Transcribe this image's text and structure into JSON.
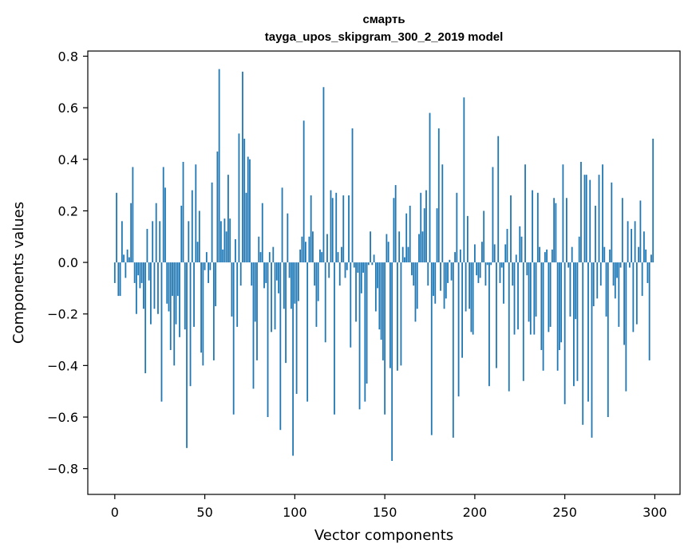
{
  "chart_data": {
    "type": "bar",
    "title_line1": "смарть",
    "title_line2": "tayga_upos_skipgram_300_2_2019 model",
    "xlabel": "Vector components",
    "ylabel": "Components values",
    "xlim": [
      -15,
      314
    ],
    "ylim": [
      -0.9,
      0.82
    ],
    "xticks": [
      0,
      50,
      100,
      150,
      200,
      250,
      300
    ],
    "yticks": [
      0.8,
      0.6,
      0.4,
      0.2,
      0.0,
      -0.2,
      -0.4,
      -0.6,
      -0.8
    ],
    "ytick_labels": [
      "0.8",
      "0.6",
      "0.4",
      "0.2",
      "0.0",
      "−0.2",
      "−0.4",
      "−0.6",
      "−0.8"
    ],
    "bar_color": "#1f77b4",
    "values": [
      -0.08,
      0.27,
      -0.13,
      -0.13,
      0.16,
      0.03,
      -0.06,
      0.05,
      0.02,
      0.23,
      0.37,
      -0.08,
      -0.2,
      -0.05,
      -0.1,
      -0.08,
      -0.18,
      -0.43,
      0.13,
      -0.07,
      -0.24,
      0.16,
      -0.18,
      0.23,
      -0.2,
      0.16,
      -0.54,
      0.37,
      0.29,
      -0.16,
      -0.19,
      -0.34,
      -0.13,
      -0.4,
      -0.24,
      -0.13,
      -0.29,
      0.22,
      0.39,
      -0.26,
      -0.72,
      0.16,
      -0.48,
      0.28,
      -0.25,
      0.38,
      0.08,
      0.2,
      -0.35,
      -0.4,
      -0.03,
      0.04,
      -0.08,
      -0.03,
      0.31,
      -0.38,
      -0.17,
      0.43,
      0.75,
      0.16,
      0.05,
      0.17,
      0.12,
      0.34,
      0.17,
      -0.21,
      -0.59,
      0.09,
      -0.25,
      0.5,
      -0.09,
      0.74,
      0.48,
      0.27,
      0.41,
      0.4,
      -0.09,
      -0.49,
      -0.23,
      -0.38,
      0.1,
      0.04,
      0.23,
      -0.1,
      -0.08,
      -0.6,
      0.04,
      -0.27,
      0.06,
      -0.26,
      -0.07,
      -0.12,
      -0.65,
      0.29,
      -0.18,
      -0.39,
      0.19,
      -0.06,
      -0.18,
      -0.75,
      -0.16,
      -0.51,
      -0.15,
      0.05,
      0.1,
      0.55,
      0.08,
      -0.54,
      0.1,
      0.26,
      0.12,
      -0.09,
      -0.25,
      -0.15,
      0.05,
      0.04,
      0.68,
      -0.31,
      0.11,
      -0.06,
      0.28,
      0.25,
      -0.59,
      0.27,
      0.04,
      -0.09,
      0.06,
      0.26,
      -0.06,
      -0.03,
      0.26,
      -0.33,
      0.52,
      -0.02,
      -0.23,
      -0.04,
      -0.57,
      -0.12,
      -0.04,
      -0.54,
      -0.47,
      -0.01,
      0.12,
      -0.01,
      0.03,
      -0.19,
      -0.1,
      -0.26,
      -0.3,
      -0.38,
      -0.59,
      0.11,
      0.08,
      -0.41,
      -0.77,
      0.25,
      0.3,
      -0.42,
      0.12,
      -0.4,
      0.06,
      0.02,
      0.19,
      0.06,
      0.22,
      -0.05,
      -0.09,
      -0.23,
      -0.18,
      0.11,
      0.27,
      0.12,
      0.21,
      0.28,
      -0.09,
      0.58,
      -0.67,
      -0.13,
      -0.16,
      0.21,
      0.52,
      -0.11,
      0.38,
      -0.18,
      -0.14,
      -0.08,
      0.01,
      -0.07,
      -0.68,
      0.04,
      0.27,
      -0.52,
      0.05,
      -0.37,
      0.64,
      -0.19,
      0.18,
      -0.18,
      -0.27,
      -0.28,
      0.07,
      -0.05,
      -0.08,
      -0.06,
      0.08,
      0.2,
      -0.09,
      -0.01,
      -0.48,
      -0.01,
      0.37,
      0.07,
      -0.41,
      0.49,
      -0.08,
      -0.02,
      -0.16,
      0.07,
      0.13,
      -0.5,
      0.26,
      -0.09,
      -0.28,
      0.03,
      -0.26,
      0.14,
      0.1,
      -0.46,
      0.38,
      -0.05,
      -0.23,
      -0.28,
      0.28,
      -0.28,
      -0.21,
      0.27,
      0.06,
      -0.34,
      -0.42,
      0.04,
      0.05,
      -0.27,
      -0.25,
      0.05,
      0.25,
      0.23,
      -0.42,
      -0.34,
      -0.31,
      0.38,
      -0.55,
      0.25,
      -0.02,
      -0.21,
      0.06,
      -0.48,
      -0.22,
      -0.46,
      0.1,
      0.39,
      -0.63,
      0.34,
      0.34,
      -0.54,
      0.32,
      -0.68,
      -0.17,
      0.22,
      -0.14,
      0.34,
      -0.09,
      0.38,
      0.06,
      -0.21,
      -0.6,
      0.05,
      0.31,
      -0.09,
      -0.14,
      -0.06,
      -0.25,
      -0.02,
      0.25,
      -0.32,
      -0.5,
      0.16,
      -0.02,
      0.13,
      -0.27,
      0.16,
      -0.24,
      0.06,
      0.24,
      -0.13,
      0.12,
      0.05,
      -0.08,
      -0.38,
      0.03,
      0.48
    ]
  }
}
